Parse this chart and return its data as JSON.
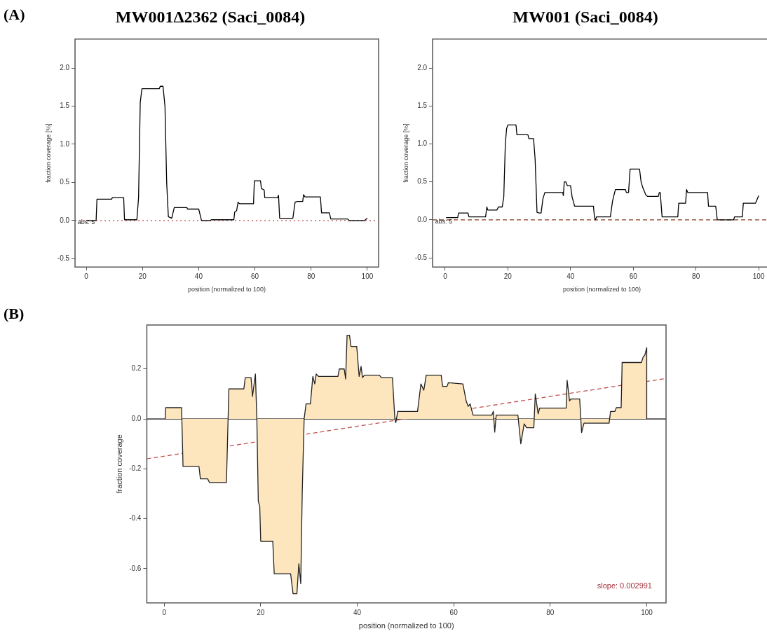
{
  "chart_data": [
    {
      "type": "line",
      "title": "MW001Δ2362 (Saci_0084)",
      "xlabel": "position (normalized to 100)",
      "ylabel": "fraction coverage [%]",
      "annotations": [
        "(A)",
        {
          "text": "abs: 5",
          "x": -3.6,
          "y": 0
        }
      ],
      "xlim": [
        -4,
        104
      ],
      "xticks": [
        0,
        20,
        40,
        60,
        80,
        100
      ],
      "ylim": [
        -0.61,
        2.38
      ],
      "yticks": [
        -0.5,
        {
          "value": 0,
          "label": "0.0"
        },
        0.5,
        {
          "value": 1,
          "label": "1.0"
        },
        1.5,
        {
          "value": 2,
          "label": "2.0"
        }
      ],
      "ref_lines": [
        {
          "axis": "y",
          "value": 0,
          "color": "#c0504d",
          "line_style": "dotted"
        }
      ],
      "series": [
        {
          "color": "#000000",
          "x": [
            0,
            3.5,
            3.8,
            9,
            9.3,
            13.3,
            13.6,
            18,
            18.6,
            19.2,
            19.8,
            26,
            26.3,
            27.3,
            28,
            28.6,
            29.2,
            30.4,
            31.3,
            35.8,
            36,
            40,
            41,
            44,
            44.5,
            52.5,
            52.8,
            53.5,
            54,
            54.5,
            59.5,
            59.8,
            62,
            62.3,
            63.3,
            63.5,
            68,
            68.4,
            68.8,
            73.5,
            74.3,
            75,
            77,
            77.3,
            77.8,
            83.3,
            83.7,
            84.6,
            86.5,
            87,
            93,
            93.5,
            99,
            100
          ],
          "values": [
            0,
            0,
            0.28,
            0.28,
            0.3,
            0.3,
            0.01,
            0.01,
            0.3,
            1.55,
            1.73,
            1.73,
            1.76,
            1.76,
            1.5,
            0.5,
            0.05,
            0.03,
            0.17,
            0.17,
            0.15,
            0.15,
            0.0,
            0.0,
            0.01,
            0.01,
            0.11,
            0.13,
            0.24,
            0.22,
            0.22,
            0.52,
            0.52,
            0.42,
            0.4,
            0.3,
            0.3,
            0.33,
            0.03,
            0.03,
            0.24,
            0.25,
            0.25,
            0.34,
            0.31,
            0.31,
            0.1,
            0.1,
            0.1,
            0.02,
            0.02,
            0.0,
            0.0,
            0.03
          ]
        }
      ]
    },
    {
      "type": "line",
      "title": "MW001 (Saci_0084)",
      "xlabel": "position (normalized to 100)",
      "ylabel": "fraction coverage [%]",
      "annotations": [
        {
          "text": "abs: 5",
          "x": -3.6,
          "y": 0
        }
      ],
      "xlim": [
        -4,
        104
      ],
      "xticks": [
        0,
        20,
        40,
        60,
        80,
        100
      ],
      "ylim": [
        -0.62,
        2.38
      ],
      "yticks": [
        -0.5,
        {
          "value": 0,
          "label": "0.0"
        },
        0.5,
        {
          "value": 1,
          "label": "1.0"
        },
        1.5,
        {
          "value": 2,
          "label": "2.0"
        }
      ],
      "ref_lines": [
        {
          "axis": "y",
          "value": 0,
          "color": "#8b3a1a",
          "line_style": "dashed"
        }
      ],
      "series": [
        {
          "color": "#000000",
          "x": [
            0.3,
            4,
            4.3,
            7.3,
            7.6,
            12.9,
            13.3,
            13.6,
            16.5,
            17,
            18.2,
            18.7,
            19.2,
            19.6,
            20,
            22.6,
            22.9,
            26.4,
            26.7,
            28.2,
            28.7,
            29.3,
            30,
            30.6,
            31.2,
            31.8,
            37.5,
            37.7,
            38,
            38.5,
            39,
            40,
            40.5,
            41.3,
            47.3,
            47.6,
            47.9,
            48.3,
            52.7,
            53.4,
            54.3,
            57.5,
            57.8,
            58.5,
            59,
            62,
            62.5,
            63,
            64,
            64.5,
            68,
            68.3,
            68.6,
            69.2,
            74.2,
            74.5,
            76.7,
            77,
            77.4,
            83.7,
            84,
            86.3,
            86.8,
            92,
            92.3,
            94.8,
            95.1,
            99,
            99.5,
            100
          ],
          "values": [
            0.03,
            0.03,
            0.09,
            0.09,
            0.04,
            0.04,
            0.17,
            0.13,
            0.13,
            0.17,
            0.17,
            0.3,
            1.0,
            1.2,
            1.25,
            1.25,
            1.12,
            1.12,
            1.07,
            1.07,
            0.8,
            0.1,
            0.09,
            0.09,
            0.28,
            0.36,
            0.36,
            0.32,
            0.5,
            0.5,
            0.45,
            0.45,
            0.3,
            0.18,
            0.18,
            0.05,
            0.0,
            0.04,
            0.04,
            0.25,
            0.4,
            0.4,
            0.36,
            0.36,
            0.67,
            0.67,
            0.5,
            0.43,
            0.33,
            0.31,
            0.31,
            0.36,
            0.36,
            0.04,
            0.04,
            0.22,
            0.22,
            0.4,
            0.36,
            0.36,
            0.18,
            0.18,
            0.0,
            0.0,
            0.04,
            0.04,
            0.22,
            0.22,
            0.27,
            0.32
          ]
        }
      ]
    },
    {
      "type": "area",
      "xlabel": "position (normalized to 100)",
      "ylabel": "fraction coverage",
      "annotations": [
        "(B)",
        "slope: 0.002991"
      ],
      "xlim": [
        -3.6,
        104
      ],
      "xticks": [
        0,
        20,
        40,
        60,
        80,
        100
      ],
      "ylim": [
        -0.737,
        0.376
      ],
      "yticks": [
        -0.6,
        -0.4,
        -0.2,
        {
          "value": 0,
          "label": "0.0"
        },
        0.2
      ],
      "ref_lines": [
        {
          "axis": "y",
          "value": 0,
          "color": "#000000",
          "line_style": "solid"
        }
      ],
      "series": [
        {
          "type": "area",
          "color": "#fde5bd",
          "x": [
            0.2,
            0.3,
            3.6,
            3.9,
            7.2,
            7.5,
            9,
            9.4,
            12.9,
            13.4,
            16.5,
            16.8,
            18,
            18.3,
            18.9,
            19.2,
            19.5,
            19.8,
            20,
            22.5,
            22.8,
            26.2,
            26.7,
            27.5,
            27.9,
            28.3,
            28.6,
            29,
            29.4,
            30.3,
            30.8,
            31.2,
            31.5,
            32,
            36,
            36.3,
            37.3,
            37.6,
            37.9,
            38.4,
            38.7,
            39.9,
            40.4,
            40.8,
            41.1,
            41.5,
            44.6,
            45,
            47.3,
            47.8,
            48,
            48.4,
            52.5,
            53.2,
            53.8,
            54.3,
            57.4,
            57.7,
            58.6,
            58.9,
            61.9,
            62.6,
            63,
            63.4,
            64,
            67.9,
            68.2,
            68.5,
            68.8,
            73.3,
            73.9,
            74.6,
            75.1,
            76.6,
            76.9,
            77.5,
            77.8,
            83.3,
            83.5,
            84,
            84.3,
            86.1,
            86.5,
            87,
            92.2,
            92.5,
            93.4,
            93.7,
            94.7,
            94.9,
            98.9,
            99.3,
            99.6,
            100,
            100
          ],
          "values": [
            0,
            0.045,
            0.045,
            -0.19,
            -0.19,
            -0.24,
            -0.24,
            -0.255,
            -0.255,
            0.12,
            0.12,
            0.165,
            0.165,
            0.09,
            0.18,
            0.0,
            -0.33,
            -0.35,
            -0.49,
            -0.49,
            -0.62,
            -0.62,
            -0.7,
            -0.7,
            -0.58,
            -0.66,
            -0.3,
            0.0,
            0.06,
            0.06,
            0.17,
            0.14,
            0.18,
            0.17,
            0.17,
            0.2,
            0.2,
            0.16,
            0.335,
            0.335,
            0.29,
            0.29,
            0.17,
            0.21,
            0.165,
            0.175,
            0.175,
            0.165,
            0.165,
            0.0,
            -0.015,
            0.03,
            0.03,
            0.14,
            0.115,
            0.175,
            0.175,
            0.13,
            0.13,
            0.145,
            0.14,
            0.07,
            0.05,
            0.06,
            0.015,
            0.015,
            0.03,
            -0.053,
            0.015,
            0.015,
            -0.1,
            -0.02,
            -0.035,
            -0.035,
            0.1,
            0.02,
            0.043,
            0.043,
            0.155,
            0.072,
            0.08,
            0.08,
            -0.055,
            -0.017,
            -0.017,
            0.03,
            0.03,
            0.045,
            0.045,
            0.226,
            0.226,
            0.25,
            0.255,
            0.285,
            0
          ]
        },
        {
          "type": "line",
          "color": "#c0504d",
          "line_style": "dashed",
          "x": [
            -3.6,
            104
          ],
          "values": [
            -0.16,
            0.162
          ]
        }
      ]
    }
  ]
}
